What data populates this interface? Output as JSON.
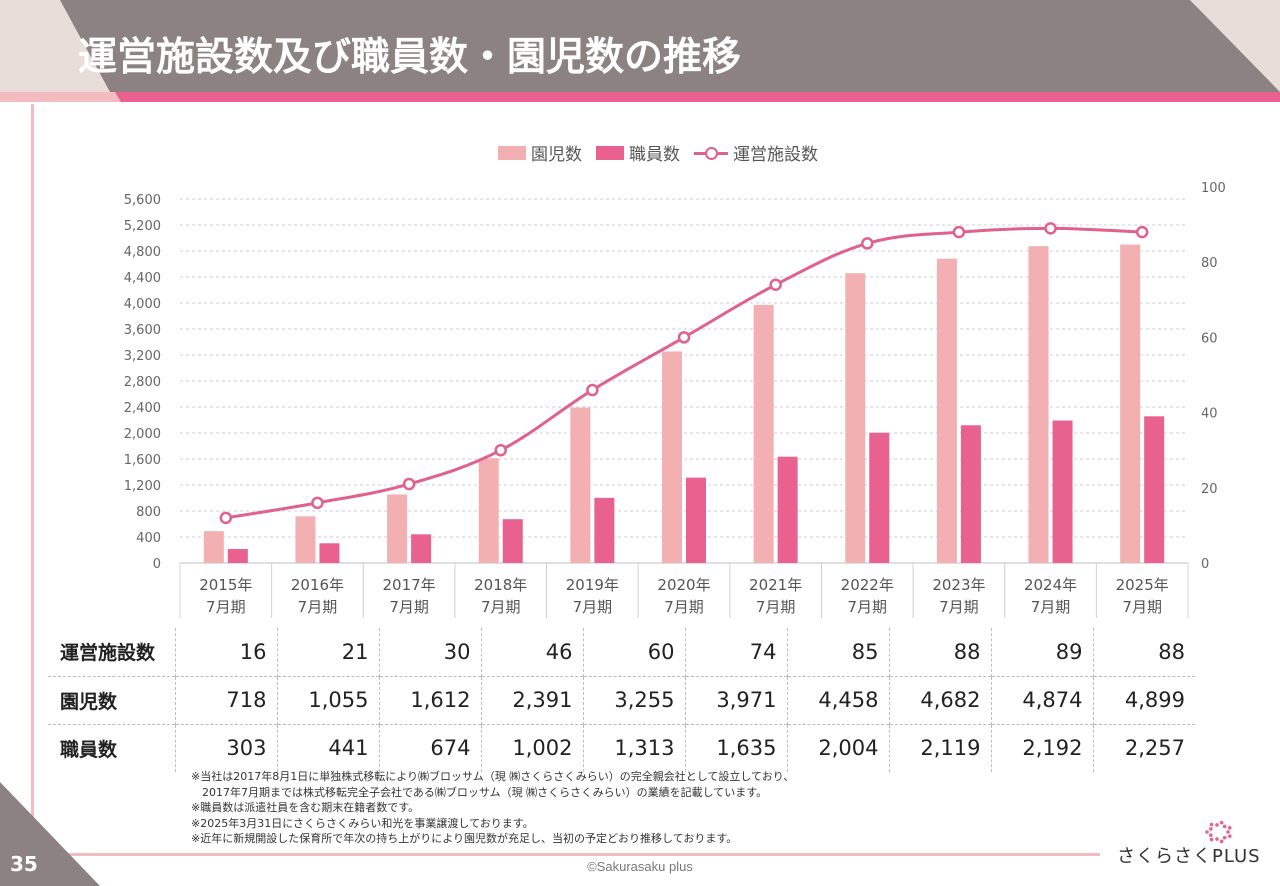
{
  "header": {
    "title": "運営施設数及び職員数・園児数の推移"
  },
  "colors": {
    "header_bg": "#8d8282",
    "header_corner": "#e8ddd9",
    "accent_pink": "#e9618f",
    "children_bar": "#f2b0b3",
    "staff_bar": "#e9618f",
    "facilities_line": "#e0608e"
  },
  "legend": [
    {
      "label": "園児数",
      "type": "bar",
      "color": "#f2b0b3"
    },
    {
      "label": "職員数",
      "type": "bar",
      "color": "#e9618f"
    },
    {
      "label": "運営施設数",
      "type": "line",
      "color": "#e0608e"
    }
  ],
  "chart_data": {
    "type": "bar",
    "title": "運営施設数及び職員数・園児数の推移",
    "categories": [
      [
        "2015年",
        "7月期"
      ],
      [
        "2016年",
        "7月期"
      ],
      [
        "2017年",
        "7月期"
      ],
      [
        "2018年",
        "7月期"
      ],
      [
        "2019年",
        "7月期"
      ],
      [
        "2020年",
        "7月期"
      ],
      [
        "2021年",
        "7月期"
      ],
      [
        "2022年",
        "7月期"
      ],
      [
        "2023年",
        "7月期"
      ],
      [
        "2024年",
        "7月期"
      ],
      [
        "2025年",
        "7月期"
      ]
    ],
    "series": [
      {
        "name": "園児数",
        "type": "bar",
        "axis": "left",
        "values": [
          490,
          718,
          1055,
          1612,
          2391,
          3255,
          3971,
          4458,
          4682,
          4874,
          4899
        ]
      },
      {
        "name": "職員数",
        "type": "bar",
        "axis": "left",
        "values": [
          215,
          303,
          441,
          674,
          1002,
          1313,
          1635,
          2004,
          2119,
          2192,
          2257
        ]
      },
      {
        "name": "運営施設数",
        "type": "line",
        "axis": "right",
        "values": [
          12,
          16,
          21,
          30,
          46,
          60,
          74,
          85,
          88,
          89,
          88
        ]
      }
    ],
    "left_axis": {
      "min": 0,
      "max": 5600,
      "ticks": [
        0,
        400,
        800,
        1200,
        1600,
        2000,
        2400,
        2800,
        3200,
        3600,
        4000,
        4400,
        4800,
        5200,
        5600
      ]
    },
    "right_axis": {
      "min": 0,
      "max": 100,
      "ticks": [
        0,
        20,
        40,
        60,
        80,
        100
      ]
    },
    "xlabel": "",
    "ylabel": "",
    "grid": true,
    "legend_position": "top-center"
  },
  "table": {
    "rows": [
      {
        "label": "運営施設数",
        "values": [
          "16",
          "21",
          "30",
          "46",
          "60",
          "74",
          "85",
          "88",
          "89",
          "88"
        ]
      },
      {
        "label": "園児数",
        "values": [
          "718",
          "1,055",
          "1,612",
          "2,391",
          "3,255",
          "3,971",
          "4,458",
          "4,682",
          "4,874",
          "4,899"
        ]
      },
      {
        "label": "職員数",
        "values": [
          "303",
          "441",
          "674",
          "1,002",
          "1,313",
          "1,635",
          "2,004",
          "2,119",
          "2,192",
          "2,257"
        ]
      }
    ]
  },
  "notes": [
    "※当社は2017年8月1日に単独株式移転により㈱ブロッサム（現 ㈱さくらさくみらい）の完全親会社として設立しており、",
    "　2017年7月期までは株式移転完全子会社である㈱ブロッサム（現 ㈱さくらさくみらい）の業績を記載しています。",
    "※職員数は派遣社員を含む期末在籍者数です。",
    "※2025年3月31日にさくらさくみらい和光を事業譲渡しております。",
    "※近年に新規開設した保育所で年次の持ち上がりにより園児数が充足し、当初の予定どおり推移しております。"
  ],
  "footer": {
    "page_number": "35",
    "copyright": "©Sakurasaku plus",
    "logo_text": "さくらさくPLUS"
  }
}
